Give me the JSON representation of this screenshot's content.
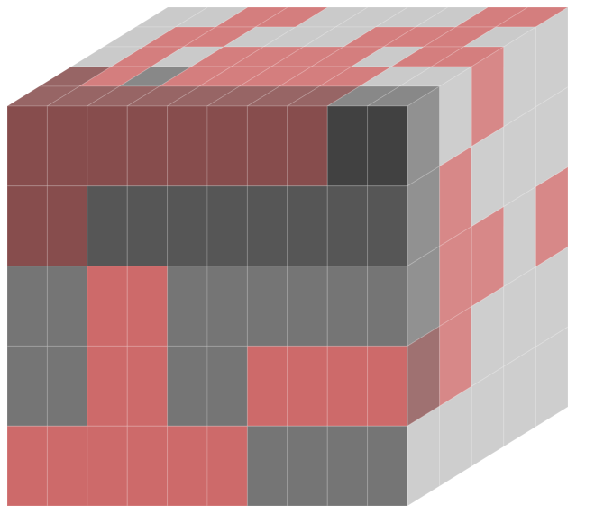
{
  "cube": {
    "colors": {
      "red": "#c85a5a",
      "dark_red": "#7a3a3a",
      "dark_gray": "#444444",
      "mid_gray": "#666666",
      "light_gray": "#bbbbbb",
      "near_black": "#2c2c2c"
    },
    "front_face": [
      [
        "dark_red",
        "dark_red",
        "dark_red",
        "dark_red",
        "dark_red",
        "dark_red",
        "dark_red",
        "dark_red",
        "near_black",
        "near_black"
      ],
      [
        "dark_red",
        "dark_red",
        "dark_gray",
        "dark_gray",
        "dark_gray",
        "dark_gray",
        "dark_gray",
        "dark_gray",
        "dark_gray",
        "dark_gray"
      ],
      [
        "mid_gray",
        "mid_gray",
        "red",
        "red",
        "mid_gray",
        "mid_gray",
        "mid_gray",
        "mid_gray",
        "mid_gray",
        "mid_gray"
      ],
      [
        "mid_gray",
        "mid_gray",
        "red",
        "red",
        "mid_gray",
        "mid_gray",
        "red",
        "red",
        "red",
        "red"
      ],
      [
        "red",
        "red",
        "red",
        "red",
        "red",
        "red",
        "mid_gray",
        "mid_gray",
        "mid_gray",
        "mid_gray"
      ]
    ],
    "top_face": [
      [
        "light_gray",
        "light_gray",
        "red",
        "red",
        "light_gray",
        "light_gray",
        "light_gray",
        "light_gray",
        "red",
        "red"
      ],
      [
        "light_gray",
        "red",
        "red",
        "light_gray",
        "light_gray",
        "light_gray",
        "red",
        "red",
        "red",
        "light_gray"
      ],
      [
        "light_gray",
        "red",
        "light_gray",
        "red",
        "red",
        "red",
        "red",
        "light_gray",
        "red",
        "red"
      ],
      [
        "dark_red",
        "red",
        "mid_gray",
        "red",
        "red",
        "red",
        "red",
        "red",
        "light_gray",
        "light_gray"
      ],
      [
        "dark_red",
        "dark_red",
        "dark_red",
        "dark_red",
        "dark_red",
        "dark_red",
        "dark_red",
        "dark_red",
        "mid_gray",
        "mid_gray"
      ]
    ],
    "side_face": [
      [
        "mid_gray",
        "light_gray",
        "red",
        "light_gray",
        "light_gray"
      ],
      [
        "mid_gray",
        "red",
        "light_gray",
        "light_gray",
        "light_gray"
      ],
      [
        "mid_gray",
        "red",
        "red",
        "light_gray",
        "red"
      ],
      [
        "dark_red",
        "red",
        "light_gray",
        "light_gray",
        "light_gray"
      ],
      [
        "light_gray",
        "light_gray",
        "light_gray",
        "light_gray",
        "light_gray"
      ]
    ]
  }
}
